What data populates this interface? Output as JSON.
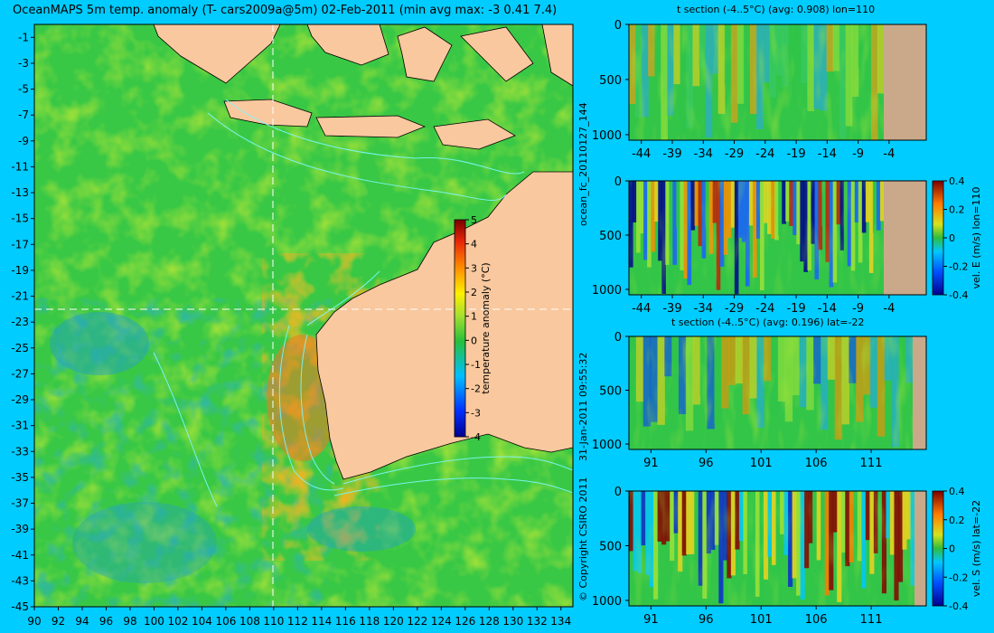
{
  "map": {
    "title": "OceanMAPS 5m temp. anomaly (T- cars2009a@5m) 02-Feb-2011 (min avg max: -3 0.41 7.4)",
    "lat_ticks": [
      "-1",
      "-3",
      "-5",
      "-7",
      "-9",
      "-11",
      "-13",
      "-15",
      "-17",
      "-19",
      "-21",
      "-23",
      "-25",
      "-27",
      "-29",
      "-31",
      "-33",
      "-35",
      "-37",
      "-39",
      "-41",
      "-43",
      "-45"
    ],
    "lon_ticks": [
      "90",
      "92",
      "94",
      "96",
      "98",
      "100",
      "102",
      "104",
      "106",
      "108",
      "110",
      "112",
      "114",
      "116",
      "118",
      "120",
      "122",
      "124",
      "126",
      "128",
      "130",
      "132",
      "134"
    ],
    "colorbar_ticks": [
      "5",
      "4",
      "3",
      "2",
      "1",
      "0",
      "-1",
      "-2",
      "-3",
      "-4"
    ],
    "colorbar_label": "temperature anomaly (°C)",
    "colors": {
      "land": "#f9c89e",
      "section_land": "#c9a98a",
      "background": "#00ccff",
      "contour": "#7df9ff"
    }
  },
  "side": {
    "run_label": "ocean_fc_20110127_144",
    "timestamp": "31-Jan-2011 09:55:32",
    "copyright": "© Copyright CSIRO 2011"
  },
  "panels": [
    {
      "title": "t section (-4..5°C) (avg: 0.908) lon=110",
      "xticks": [
        "-44",
        "-39",
        "-34",
        "-29",
        "-24",
        "-19",
        "-14",
        "-9",
        "-4"
      ],
      "yticks": [
        "0",
        "500",
        "1000"
      ],
      "cbar_label": ""
    },
    {
      "title": "",
      "xticks": [
        "-44",
        "-39",
        "-34",
        "-29",
        "-24",
        "-19",
        "-14",
        "-9",
        "-4"
      ],
      "yticks": [
        "0",
        "500",
        "1000"
      ],
      "cbar_label": "vel. E (m/s) lon=110",
      "cbar_ticks": [
        "0.4",
        "0.2",
        "0",
        "-0.2",
        "-0.4"
      ]
    },
    {
      "title": "t section (-4..5°C) (avg: 0.196) lat=-22",
      "xticks": [
        "91",
        "96",
        "101",
        "106",
        "111"
      ],
      "yticks": [
        "0",
        "500",
        "1000"
      ],
      "cbar_label": ""
    },
    {
      "title": "",
      "xticks": [
        "91",
        "96",
        "101",
        "106",
        "111"
      ],
      "yticks": [
        "0",
        "500",
        "1000"
      ],
      "cbar_label": "vel. S (m/s) lat=-22",
      "cbar_ticks": [
        "0.4",
        "0.2",
        "0",
        "-0.2",
        "-0.4"
      ]
    }
  ],
  "chart_data": [
    {
      "type": "heatmap",
      "title": "OceanMAPS 5m temp. anomaly (T- cars2009a@5m) 02-Feb-2011 (min avg max: -3 0.41 7.4)",
      "xlim": [
        90,
        135
      ],
      "ylim": [
        -45,
        0
      ],
      "clim": [
        -4,
        5
      ],
      "stats": {
        "min": -3,
        "avg": 0.41,
        "max": 7.4
      },
      "xlabel": "",
      "ylabel": "",
      "colorbar_label": "temperature anomaly (°C)"
    },
    {
      "type": "heatmap",
      "title": "t section (-4..5°C) (avg: 0.908) lon=110",
      "xlim": [
        -46,
        2
      ],
      "ylim": [
        1050,
        0
      ],
      "avg": 0.908
    },
    {
      "type": "heatmap",
      "title": "",
      "xlim": [
        -46,
        2
      ],
      "ylim": [
        1050,
        0
      ],
      "clim": [
        -0.4,
        0.4
      ],
      "colorbar_label": "vel. E (m/s) lon=110"
    },
    {
      "type": "heatmap",
      "title": "t section (-4..5°C) (avg: 0.196) lat=-22",
      "xlim": [
        89,
        116
      ],
      "ylim": [
        1050,
        0
      ],
      "avg": 0.196
    },
    {
      "type": "heatmap",
      "title": "",
      "xlim": [
        89,
        116
      ],
      "ylim": [
        1050,
        0
      ],
      "clim": [
        -0.4,
        0.4
      ],
      "colorbar_label": "vel. S (m/s) lat=-22"
    }
  ]
}
